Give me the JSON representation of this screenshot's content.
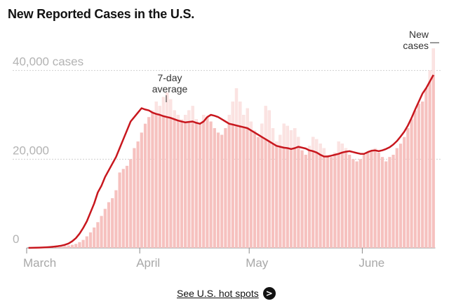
{
  "title": "New Reported Cases in the U.S.",
  "footer": {
    "link_label": "See U.S. hot spots",
    "arrow_icon": ">"
  },
  "colors": {
    "bar": "#f6c1bf",
    "bar_light": "#fbe3e2",
    "line": "#c8171e",
    "grid": "#cfcfcf"
  },
  "chart_data": {
    "type": "bar",
    "title": "New Reported Cases in the U.S.",
    "ylabel": "",
    "xlabel": "",
    "ylim": [
      0,
      45000
    ],
    "y_ticks": [
      {
        "value": 0,
        "label": "0"
      },
      {
        "value": 20000,
        "label": "20,000"
      },
      {
        "value": 40000,
        "label": "40,000 cases"
      }
    ],
    "x_ticks": [
      {
        "day": 0,
        "label": "March"
      },
      {
        "day": 31,
        "label": "April"
      },
      {
        "day": 61,
        "label": "May"
      },
      {
        "day": 92,
        "label": "June"
      }
    ],
    "start_date": "2020-03-01",
    "annotations": {
      "average_label": [
        "7-day",
        "average"
      ],
      "new_cases_label": [
        "New",
        "cases"
      ]
    },
    "series": [
      {
        "name": "New cases",
        "values": [
          5,
          10,
          20,
          30,
          40,
          60,
          100,
          150,
          200,
          280,
          400,
          550,
          700,
          900,
          1300,
          1800,
          2600,
          3500,
          4600,
          5800,
          7200,
          8800,
          10300,
          11200,
          13000,
          17000,
          17800,
          18500,
          20000,
          22500,
          24000,
          26000,
          28000,
          29500,
          31000,
          33000,
          32000,
          34000,
          35000,
          33500,
          31000,
          30000,
          29000,
          30000,
          31000,
          32000,
          29000,
          28000,
          30000,
          29500,
          28500,
          27000,
          26000,
          25500,
          27000,
          30000,
          33000,
          36000,
          33000,
          30000,
          31500,
          28500,
          26500,
          25000,
          28000,
          32000,
          31000,
          27000,
          24000,
          25500,
          28000,
          27500,
          26500,
          27000,
          25000,
          22000,
          21000,
          23000,
          25000,
          24500,
          23500,
          22500,
          21000,
          20500,
          21500,
          24000,
          23500,
          22500,
          21000,
          20000,
          19500,
          20000,
          21000,
          21500,
          22000,
          22500,
          21500,
          20500,
          19500,
          20500,
          21000,
          22500,
          23500,
          25000,
          27000,
          29000,
          31000,
          32500,
          33000,
          36000,
          40000,
          45000
        ]
      },
      {
        "name": "7-day average",
        "values": [
          0,
          20,
          40,
          60,
          100,
          150,
          200,
          280,
          380,
          500,
          700,
          1000,
          1500,
          2200,
          3200,
          4500,
          6000,
          8000,
          10000,
          12500,
          14000,
          16000,
          17500,
          19000,
          20500,
          22500,
          24500,
          26500,
          28500,
          29500,
          30500,
          31500,
          31200,
          31000,
          30500,
          30200,
          30000,
          29700,
          29500,
          29300,
          29000,
          28700,
          28500,
          28300,
          28400,
          28500,
          28200,
          28000,
          28500,
          29500,
          30000,
          29800,
          29500,
          29000,
          28500,
          28000,
          27800,
          27600,
          27400,
          27200,
          27000,
          26500,
          26000,
          25500,
          25000,
          24500,
          24000,
          23500,
          23000,
          22800,
          22600,
          22500,
          22300,
          22500,
          22800,
          22600,
          22400,
          22000,
          21800,
          21500,
          21000,
          20600,
          20600,
          20800,
          21000,
          21200,
          21500,
          21700,
          21800,
          21600,
          21400,
          21200,
          21200,
          21600,
          21900,
          22000,
          21800,
          22000,
          22300,
          22700,
          23300,
          24100,
          25100,
          26200,
          27600,
          29300,
          31200,
          33000,
          34800,
          36000,
          37500,
          39000
        ]
      }
    ],
    "grid": true
  }
}
